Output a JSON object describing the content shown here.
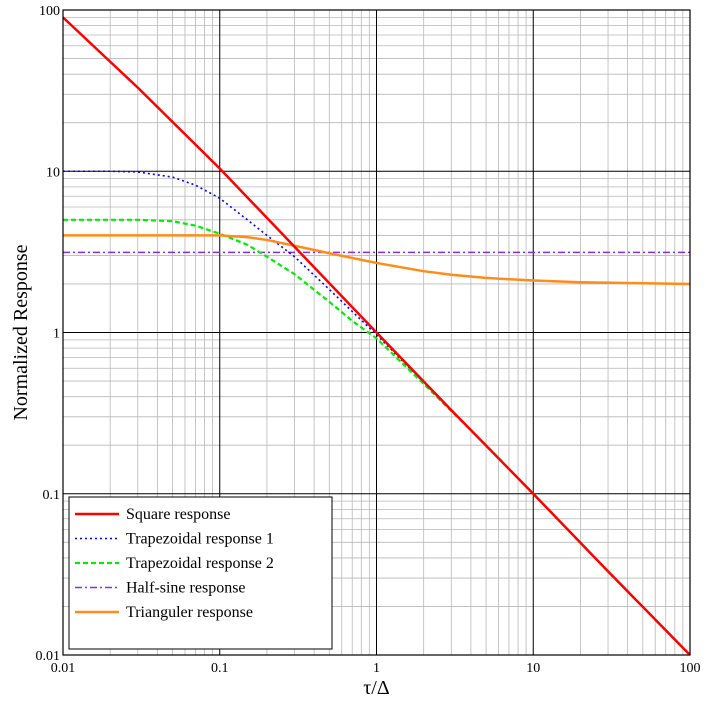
{
  "chart_data": {
    "type": "line",
    "title": "",
    "xlabel": "τ/Δ",
    "ylabel": "Normalized Response",
    "xscale": "log",
    "yscale": "log",
    "xlim": [
      0.01,
      100
    ],
    "ylim": [
      0.01,
      100
    ],
    "grid": true,
    "legend_position": "bottom-left",
    "x_ticks": [
      0.01,
      0.1,
      1,
      10,
      100
    ],
    "x_tick_labels": [
      "0.01",
      "0.1",
      "1",
      "10",
      "100"
    ],
    "y_ticks": [
      0.01,
      0.1,
      1,
      10,
      100
    ],
    "y_tick_labels": [
      "0.01",
      "0.1",
      "1",
      "10",
      "100"
    ],
    "series": [
      {
        "name": "Square response",
        "color": "#ff0000",
        "style": "solid",
        "x": [
          0.01,
          0.03,
          0.1,
          0.3,
          1,
          3,
          10,
          30,
          100
        ],
        "y": [
          90,
          33,
          10.4,
          3.4,
          1.0,
          0.33,
          0.1,
          0.033,
          0.01
        ]
      },
      {
        "name": "Trapezoidal response 1",
        "color": "#0000ff",
        "style": "dotted",
        "x": [
          0.01,
          0.02,
          0.03,
          0.05,
          0.07,
          0.1,
          0.15,
          0.2,
          0.3,
          0.5,
          0.7,
          1,
          2,
          5,
          10,
          30,
          100
        ],
        "y": [
          10,
          10,
          9.9,
          9.2,
          8.2,
          6.8,
          5.0,
          4.0,
          2.95,
          1.85,
          1.35,
          0.97,
          0.49,
          0.2,
          0.1,
          0.033,
          0.01
        ]
      },
      {
        "name": "Trapezoidal response 2",
        "color": "#00ee00",
        "style": "dashed",
        "x": [
          0.01,
          0.02,
          0.03,
          0.05,
          0.07,
          0.1,
          0.15,
          0.2,
          0.3,
          0.5,
          0.7,
          1,
          2,
          5,
          10,
          30,
          100
        ],
        "y": [
          5.0,
          5.0,
          5.0,
          4.9,
          4.6,
          4.1,
          3.5,
          2.95,
          2.3,
          1.55,
          1.18,
          0.92,
          0.48,
          0.2,
          0.1,
          0.033,
          0.01
        ]
      },
      {
        "name": "Half-sine response",
        "color": "#8a2be2",
        "style": "dashdot",
        "x": [
          0.01,
          100
        ],
        "y": [
          3.14,
          3.14
        ]
      },
      {
        "name": "Trianguler response",
        "color": "#ff8c1a",
        "style": "solid",
        "x": [
          0.01,
          0.05,
          0.1,
          0.15,
          0.2,
          0.3,
          0.5,
          1,
          2,
          3,
          5,
          10,
          20,
          50,
          100
        ],
        "y": [
          4.0,
          4.0,
          4.0,
          3.9,
          3.75,
          3.45,
          3.1,
          2.7,
          2.4,
          2.28,
          2.18,
          2.1,
          2.05,
          2.02,
          2.0
        ]
      }
    ]
  }
}
